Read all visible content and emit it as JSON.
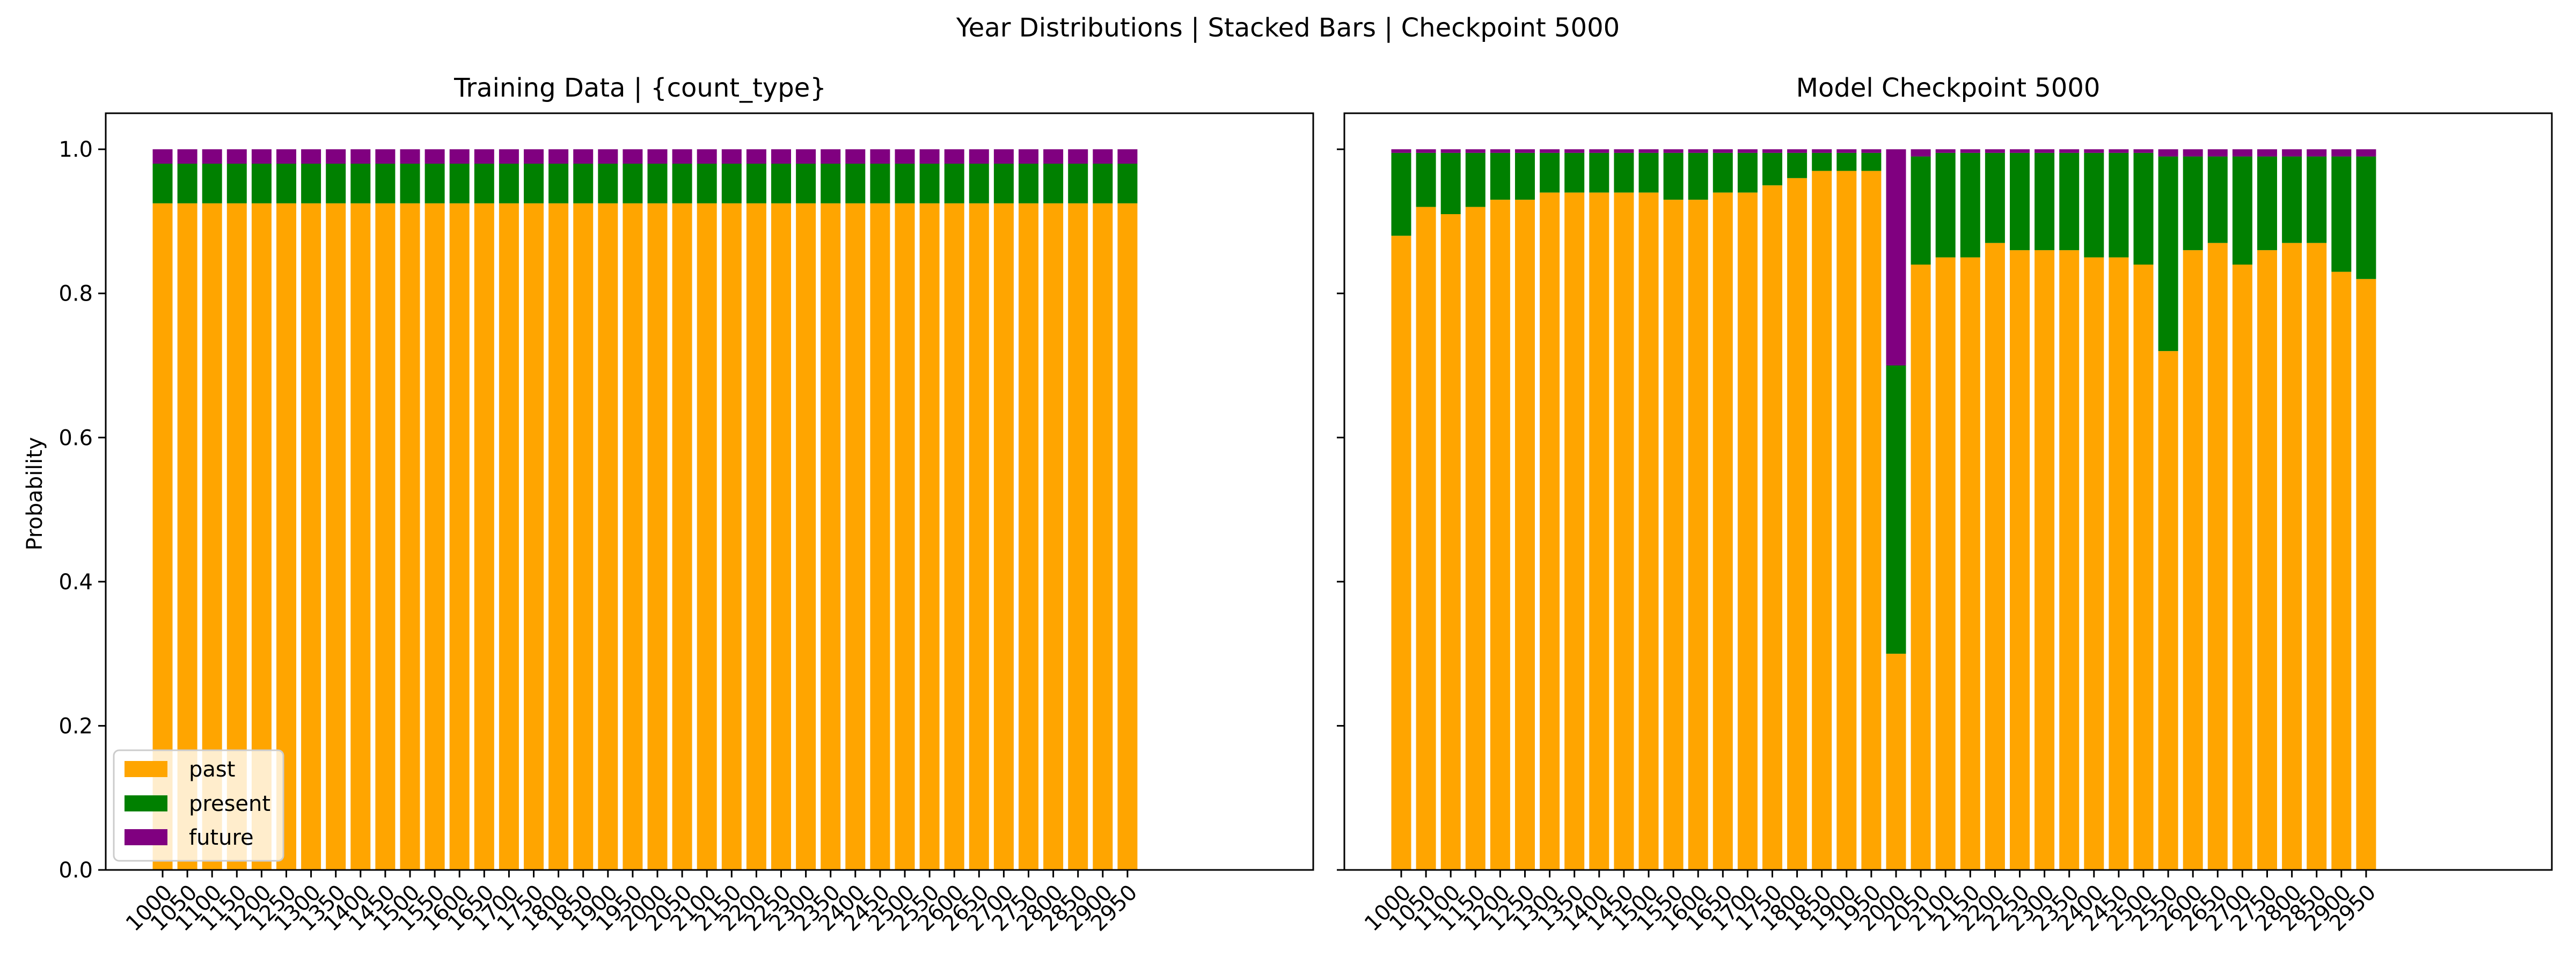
{
  "figure_title": "Year Distributions | Stacked Bars | Checkpoint 5000",
  "colors": {
    "past": "#ffa500",
    "present": "#008000",
    "future": "#800080"
  },
  "chart_data": [
    {
      "type": "bar",
      "stacked": true,
      "title": "Training Data | {count_type}",
      "xlabel": "",
      "ylabel": "Probability",
      "ylim": [
        0,
        1.05
      ],
      "yticks": [
        "0.0",
        "0.2",
        "0.4",
        "0.6",
        "0.8",
        "1.0"
      ],
      "categories": [
        "1000",
        "1050",
        "1100",
        "1150",
        "1200",
        "1250",
        "1300",
        "1350",
        "1400",
        "1450",
        "1500",
        "1550",
        "1600",
        "1650",
        "1700",
        "1750",
        "1800",
        "1850",
        "1900",
        "1950",
        "2000",
        "2050",
        "2100",
        "2150",
        "2200",
        "2250",
        "2300",
        "2350",
        "2400",
        "2450",
        "2500",
        "2550",
        "2600",
        "2650",
        "2700",
        "2750",
        "2800",
        "2850",
        "2900",
        "2950"
      ],
      "legend": {
        "placement": "lower-left",
        "entries": [
          "past",
          "present",
          "future"
        ]
      },
      "series": [
        {
          "name": "past",
          "values": [
            0.925,
            0.925,
            0.925,
            0.925,
            0.925,
            0.925,
            0.925,
            0.925,
            0.925,
            0.925,
            0.925,
            0.925,
            0.925,
            0.925,
            0.925,
            0.925,
            0.925,
            0.925,
            0.925,
            0.925,
            0.925,
            0.925,
            0.925,
            0.925,
            0.925,
            0.925,
            0.925,
            0.925,
            0.925,
            0.925,
            0.925,
            0.925,
            0.925,
            0.925,
            0.925,
            0.925,
            0.925,
            0.925,
            0.925,
            0.925
          ]
        },
        {
          "name": "present",
          "values": [
            0.055,
            0.055,
            0.055,
            0.055,
            0.055,
            0.055,
            0.055,
            0.055,
            0.055,
            0.055,
            0.055,
            0.055,
            0.055,
            0.055,
            0.055,
            0.055,
            0.055,
            0.055,
            0.055,
            0.055,
            0.055,
            0.055,
            0.055,
            0.055,
            0.055,
            0.055,
            0.055,
            0.055,
            0.055,
            0.055,
            0.055,
            0.055,
            0.055,
            0.055,
            0.055,
            0.055,
            0.055,
            0.055,
            0.055,
            0.055
          ]
        },
        {
          "name": "future",
          "values": [
            0.02,
            0.02,
            0.02,
            0.02,
            0.02,
            0.02,
            0.02,
            0.02,
            0.02,
            0.02,
            0.02,
            0.02,
            0.02,
            0.02,
            0.02,
            0.02,
            0.02,
            0.02,
            0.02,
            0.02,
            0.02,
            0.02,
            0.02,
            0.02,
            0.02,
            0.02,
            0.02,
            0.02,
            0.02,
            0.02,
            0.02,
            0.02,
            0.02,
            0.02,
            0.02,
            0.02,
            0.02,
            0.02,
            0.02,
            0.02
          ]
        }
      ]
    },
    {
      "type": "bar",
      "stacked": true,
      "title": "Model Checkpoint 5000",
      "xlabel": "",
      "ylabel": "",
      "ylim": [
        0,
        1.05
      ],
      "yticks": [
        "",
        "",
        "",
        "",
        "",
        ""
      ],
      "categories": [
        "1000",
        "1050",
        "1100",
        "1150",
        "1200",
        "1250",
        "1300",
        "1350",
        "1400",
        "1450",
        "1500",
        "1550",
        "1600",
        "1650",
        "1700",
        "1750",
        "1800",
        "1850",
        "1900",
        "1950",
        "2000",
        "2050",
        "2100",
        "2150",
        "2200",
        "2250",
        "2300",
        "2350",
        "2400",
        "2450",
        "2500",
        "2550",
        "2600",
        "2650",
        "2700",
        "2750",
        "2800",
        "2850",
        "2900",
        "2950"
      ],
      "series": [
        {
          "name": "past",
          "values": [
            0.88,
            0.92,
            0.91,
            0.92,
            0.93,
            0.93,
            0.94,
            0.94,
            0.94,
            0.94,
            0.94,
            0.93,
            0.93,
            0.94,
            0.94,
            0.95,
            0.96,
            0.97,
            0.97,
            0.97,
            0.3,
            0.84,
            0.85,
            0.85,
            0.87,
            0.86,
            0.86,
            0.86,
            0.85,
            0.85,
            0.84,
            0.72,
            0.86,
            0.87,
            0.84,
            0.86,
            0.87,
            0.87,
            0.83,
            0.82
          ]
        },
        {
          "name": "present",
          "values": [
            0.115,
            0.075,
            0.085,
            0.075,
            0.065,
            0.065,
            0.055,
            0.055,
            0.055,
            0.055,
            0.055,
            0.065,
            0.065,
            0.055,
            0.055,
            0.045,
            0.035,
            0.025,
            0.025,
            0.025,
            0.4,
            0.15,
            0.145,
            0.145,
            0.125,
            0.135,
            0.135,
            0.135,
            0.145,
            0.145,
            0.155,
            0.27,
            0.13,
            0.12,
            0.15,
            0.13,
            0.12,
            0.12,
            0.16,
            0.17
          ]
        },
        {
          "name": "future",
          "values": [
            0.005,
            0.005,
            0.005,
            0.005,
            0.005,
            0.005,
            0.005,
            0.005,
            0.005,
            0.005,
            0.005,
            0.005,
            0.005,
            0.005,
            0.005,
            0.005,
            0.005,
            0.005,
            0.005,
            0.005,
            0.3,
            0.01,
            0.005,
            0.005,
            0.005,
            0.005,
            0.005,
            0.005,
            0.005,
            0.005,
            0.005,
            0.01,
            0.01,
            0.01,
            0.01,
            0.01,
            0.01,
            0.01,
            0.01,
            0.01
          ]
        }
      ]
    }
  ]
}
